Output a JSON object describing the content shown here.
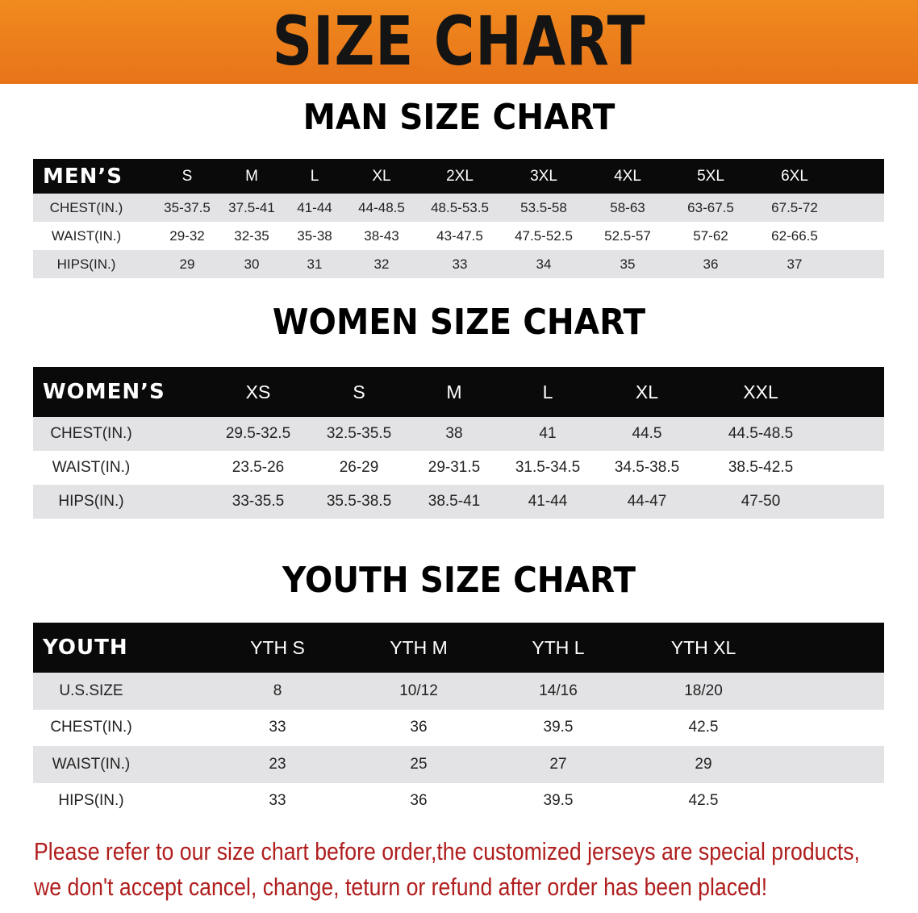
{
  "banner": {
    "title": "SIZE CHART",
    "color": "#ec7d1c"
  },
  "note_color": "#b01e1e",
  "tables": [
    {
      "title": "MAN SIZE CHART",
      "header_label": "MEN’S",
      "sizes": [
        "S",
        "M",
        "L",
        "XL",
        "2XL",
        "3XL",
        "4XL",
        "5XL",
        "6XL"
      ],
      "rows": [
        {
          "label": "CHEST(IN.)",
          "values": [
            "35-37.5",
            "37.5-41",
            "41-44",
            "44-48.5",
            "48.5-53.5",
            "53.5-58",
            "58-63",
            "63-67.5",
            "67.5-72"
          ]
        },
        {
          "label": "WAIST(IN.)",
          "values": [
            "29-32",
            "32-35",
            "35-38",
            "38-43",
            "43-47.5",
            "47.5-52.5",
            "52.5-57",
            "57-62",
            "62-66.5"
          ]
        },
        {
          "label": "HIPS(IN.)",
          "values": [
            "29",
            "30",
            "31",
            "32",
            "33",
            "34",
            "35",
            "36",
            "37"
          ]
        }
      ]
    },
    {
      "title": "WOMEN SIZE CHART",
      "header_label": "WOMEN’S",
      "sizes": [
        "XS",
        "S",
        "M",
        "L",
        "XL",
        "XXL"
      ],
      "rows": [
        {
          "label": "CHEST(IN.)",
          "values": [
            "29.5-32.5",
            "32.5-35.5",
            "38",
            "41",
            "44.5",
            "44.5-48.5"
          ]
        },
        {
          "label": "WAIST(IN.)",
          "values": [
            "23.5-26",
            "26-29",
            "29-31.5",
            "31.5-34.5",
            "34.5-38.5",
            "38.5-42.5"
          ]
        },
        {
          "label": "HIPS(IN.)",
          "values": [
            "33-35.5",
            "35.5-38.5",
            "38.5-41",
            "41-44",
            "44-47",
            "47-50"
          ]
        }
      ]
    },
    {
      "title": "YOUTH SIZE CHART",
      "header_label": "YOUTH",
      "sizes": [
        "YTH S",
        "YTH M",
        "YTH L",
        "YTH XL"
      ],
      "rows": [
        {
          "label": "U.S.SIZE",
          "values": [
            "8",
            "10/12",
            "14/16",
            "18/20"
          ]
        },
        {
          "label": "CHEST(IN.)",
          "values": [
            "33",
            "36",
            "39.5",
            "42.5"
          ]
        },
        {
          "label": "WAIST(IN.)",
          "values": [
            "23",
            "25",
            "27",
            "29"
          ]
        },
        {
          "label": "HIPS(IN.)",
          "values": [
            "33",
            "36",
            "39.5",
            "42.5"
          ]
        }
      ]
    }
  ],
  "notice": {
    "line1": "Please refer to our size chart before order,the customized jerseys are special products,",
    "line2": "we don't accept cancel, change, teturn or refund after order has been placed!"
  }
}
